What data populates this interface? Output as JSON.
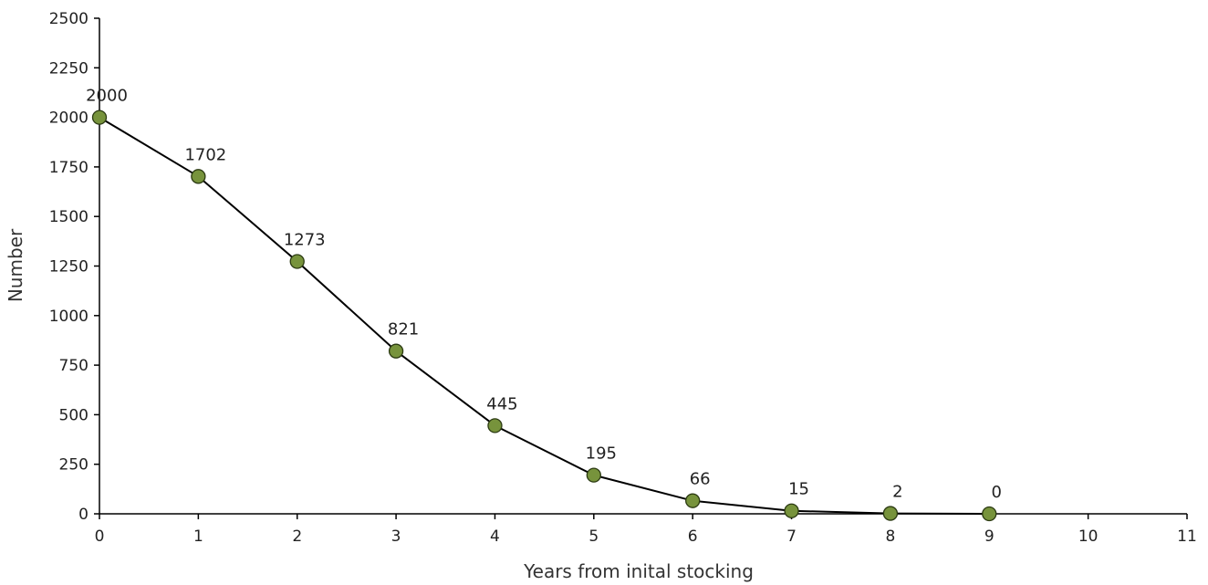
{
  "chart_data": {
    "type": "line",
    "title": "",
    "xlabel": "Years from inital stocking",
    "ylabel": "Number",
    "x": [
      0,
      1,
      2,
      3,
      4,
      5,
      6,
      7,
      8,
      9
    ],
    "series": [
      {
        "values": [
          2000,
          1702,
          1273,
          821,
          445,
          195,
          66,
          15,
          2,
          0
        ]
      }
    ],
    "data_labels": [
      "2000",
      "1702",
      "1273",
      "821",
      "445",
      "195",
      "66",
      "15",
      "2",
      "0"
    ],
    "xlim": [
      0,
      11
    ],
    "ylim": [
      0,
      2500
    ],
    "xticks": [
      0,
      1,
      2,
      3,
      4,
      5,
      6,
      7,
      8,
      9,
      10,
      11
    ],
    "xtick_labels": [
      "0",
      "1",
      "2",
      "3",
      "4",
      "5",
      "6",
      "7",
      "8",
      "9",
      "10",
      "11"
    ],
    "yticks": [
      0,
      250,
      500,
      750,
      1000,
      1250,
      1500,
      1750,
      2000,
      2250,
      2500
    ],
    "ytick_labels": [
      "0",
      "250",
      "500",
      "750",
      "1000",
      "1250",
      "1500",
      "1750",
      "2000",
      "2250",
      "2500"
    ],
    "grid": false,
    "legend": "none",
    "colors": {
      "line": "#000000",
      "marker_fill": "#77933C",
      "marker_stroke": "#2B3A12",
      "axis": "#000000"
    }
  }
}
